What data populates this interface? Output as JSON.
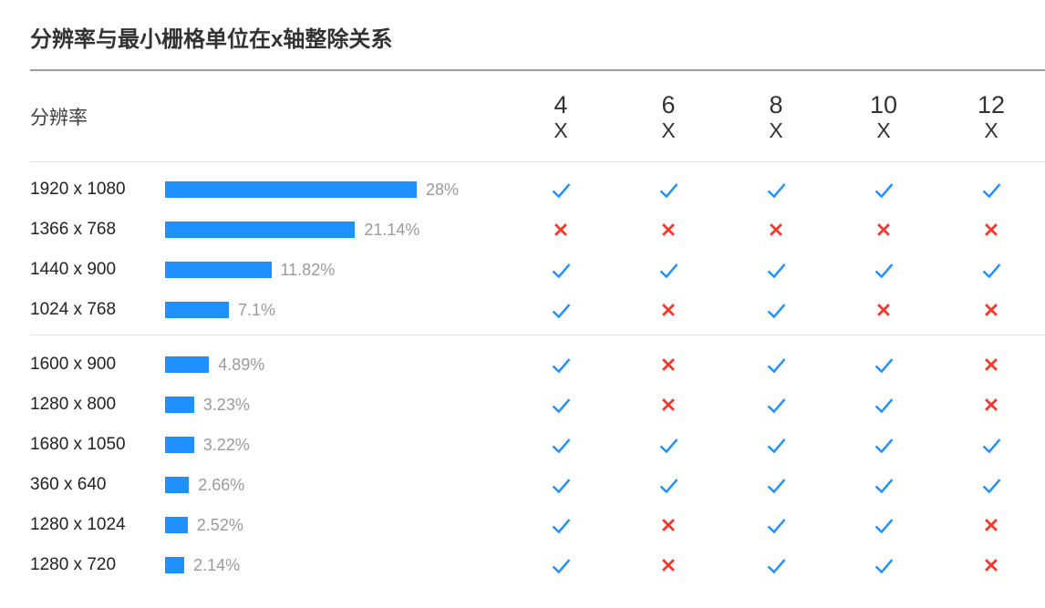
{
  "header": {
    "page_title": "分辨率与最小栅格单位在x轴整除关系",
    "resolution_column_label": "分辨率"
  },
  "colors": {
    "bar_blue": "#1e90ff",
    "check_blue": "#1e90ff",
    "cross_red": "#ee3a2f",
    "percent_gray": "#9a9a9a"
  },
  "chart_data": {
    "type": "bar",
    "orientation": "horizontal",
    "title": "分辨率与最小栅格单位在x轴整除关系",
    "xlabel": "",
    "ylabel": "分辨率",
    "xlim": [
      0,
      30
    ],
    "grid": false,
    "legend": "none",
    "categories": [
      "1920 x 1080",
      "1366 x 768",
      "1440 x 900",
      "1024 x 768",
      "1600 x 900",
      "1280 x 800",
      "1680 x 1050",
      "360 x 640",
      "1280 x 1024",
      "1280 x 720"
    ],
    "values": [
      28,
      21.14,
      11.82,
      7.1,
      4.89,
      3.23,
      3.22,
      2.66,
      2.52,
      2.14
    ],
    "value_labels": [
      "28%",
      "21.14%",
      "11.82%",
      "7.1%",
      "4.89%",
      "3.23%",
      "3.22%",
      "2.66%",
      "2.52%",
      "2.14%"
    ],
    "multiplier_columns": [
      {
        "multiple": "4",
        "unit": "X"
      },
      {
        "multiple": "6",
        "unit": "X"
      },
      {
        "multiple": "8",
        "unit": "X"
      },
      {
        "multiple": "10",
        "unit": "X"
      },
      {
        "multiple": "12",
        "unit": "X"
      }
    ],
    "divisible_matrix": [
      [
        true,
        true,
        true,
        true,
        true
      ],
      [
        false,
        false,
        false,
        false,
        false
      ],
      [
        true,
        true,
        true,
        true,
        true
      ],
      [
        true,
        false,
        true,
        false,
        false
      ],
      [
        true,
        false,
        true,
        true,
        false
      ],
      [
        true,
        false,
        true,
        true,
        false
      ],
      [
        true,
        true,
        true,
        true,
        true
      ],
      [
        true,
        true,
        true,
        true,
        true
      ],
      [
        true,
        false,
        true,
        true,
        false
      ],
      [
        true,
        false,
        true,
        true,
        false
      ]
    ],
    "group_breaks": [
      4
    ],
    "check_symbol": "✓",
    "cross_symbol": "✗"
  }
}
